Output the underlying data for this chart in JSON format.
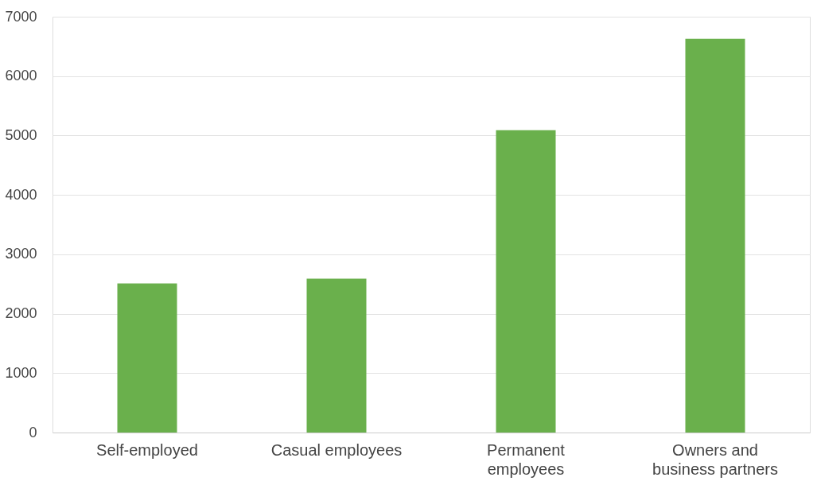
{
  "chart_data": {
    "type": "bar",
    "categories": [
      "Self-employed",
      "Casual employees",
      "Permanent employees",
      "Owners and business partners"
    ],
    "values": [
      2510,
      2590,
      5090,
      6630
    ],
    "color": "#6ab04c",
    "ylim": [
      0,
      7000
    ],
    "yticks": [
      0,
      1000,
      2000,
      3000,
      4000,
      5000,
      6000,
      7000
    ],
    "grid": "y"
  }
}
